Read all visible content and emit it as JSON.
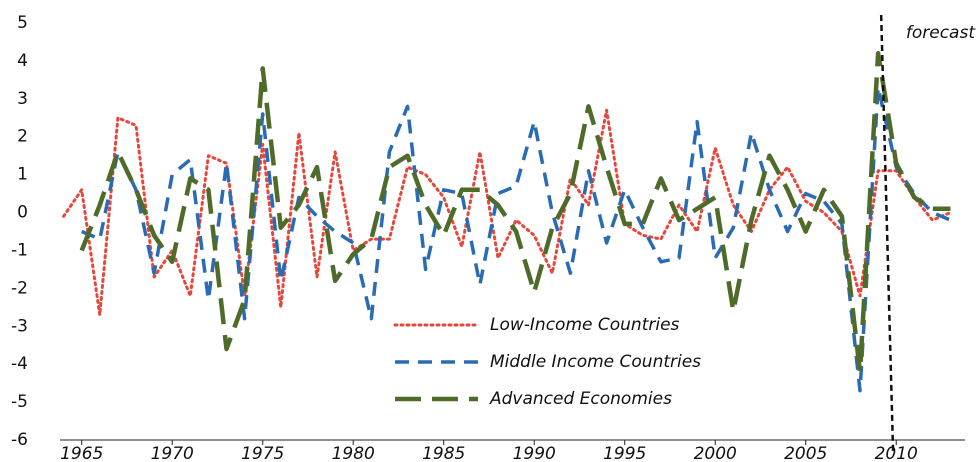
{
  "chart_data": {
    "type": "line",
    "x": [
      1964,
      1965,
      1966,
      1967,
      1968,
      1969,
      1970,
      1971,
      1972,
      1973,
      1974,
      1975,
      1976,
      1977,
      1978,
      1979,
      1980,
      1981,
      1982,
      1983,
      1984,
      1985,
      1986,
      1987,
      1988,
      1989,
      1990,
      1991,
      1992,
      1993,
      1994,
      1995,
      1996,
      1997,
      1998,
      1999,
      2000,
      2001,
      2002,
      2003,
      2004,
      2005,
      2006,
      2007,
      2008,
      2009,
      2010,
      2011,
      2012,
      2013
    ],
    "series": [
      {
        "name": "Low-Income Countries",
        "color": "#e8463a",
        "style": "dotted",
        "values": [
          -0.1,
          0.6,
          -2.7,
          2.5,
          2.3,
          -1.7,
          -1.0,
          -2.2,
          1.5,
          1.3,
          -2.2,
          1.8,
          -2.5,
          2.1,
          -1.7,
          1.6,
          -1.0,
          -0.7,
          -0.7,
          1.2,
          1.0,
          0.4,
          -0.9,
          1.6,
          -1.2,
          -0.2,
          -0.6,
          -1.6,
          0.9,
          0.2,
          2.7,
          -0.3,
          -0.6,
          -0.7,
          0.2,
          -0.5,
          1.7,
          0.2,
          -0.5,
          0.6,
          1.2,
          0.3,
          0.0,
          -0.5,
          -2.2,
          1.1,
          1.1,
          0.4,
          -0.2,
          0.0
        ]
      },
      {
        "name": "Middle Income Countries",
        "color": "#2a6bb5",
        "style": "dashed",
        "values": [
          null,
          -0.5,
          -0.7,
          1.6,
          0.6,
          -1.6,
          1.0,
          1.4,
          -2.3,
          1.3,
          -2.8,
          2.6,
          -1.8,
          0.4,
          -0.1,
          -0.5,
          -0.8,
          -2.8,
          1.6,
          2.8,
          -1.5,
          0.6,
          0.5,
          -1.9,
          0.5,
          0.7,
          2.4,
          0.0,
          -1.6,
          1.1,
          -0.8,
          0.6,
          -0.4,
          -1.3,
          -1.2,
          2.4,
          -1.2,
          -0.4,
          2.1,
          0.6,
          -0.5,
          0.5,
          0.3,
          -0.3,
          -4.7,
          3.3,
          1.2,
          0.5,
          0.0,
          -0.2
        ]
      },
      {
        "name": "Advanced Economies",
        "color": "#4f6b2a",
        "style": "longdash",
        "values": [
          null,
          -1.0,
          0.2,
          1.6,
          0.6,
          -0.6,
          -1.3,
          0.9,
          0.6,
          -3.6,
          -2.3,
          3.8,
          -0.4,
          0.2,
          1.2,
          -1.8,
          -1.1,
          -0.7,
          1.2,
          1.5,
          0.2,
          -0.6,
          0.6,
          0.6,
          0.2,
          -0.5,
          -2.1,
          -0.4,
          0.5,
          2.8,
          1.2,
          -0.3,
          -0.3,
          0.9,
          -0.2,
          0.1,
          0.4,
          -2.6,
          -0.2,
          1.5,
          0.6,
          -0.5,
          0.6,
          -0.1,
          -4.2,
          4.2,
          1.3,
          0.4,
          0.1,
          0.1
        ]
      }
    ],
    "annotation": {
      "text": "forecast",
      "x": 2009.5
    },
    "xlim": [
      1963.8,
      2013.8
    ],
    "xticks": [
      1965,
      1970,
      1975,
      1980,
      1985,
      1990,
      1995,
      2000,
      2005,
      2010
    ],
    "ylim": [
      -6,
      5
    ],
    "yticks": [
      -6,
      -5,
      -4,
      -3,
      -2,
      -1,
      0,
      1,
      2,
      3,
      4,
      5
    ]
  }
}
